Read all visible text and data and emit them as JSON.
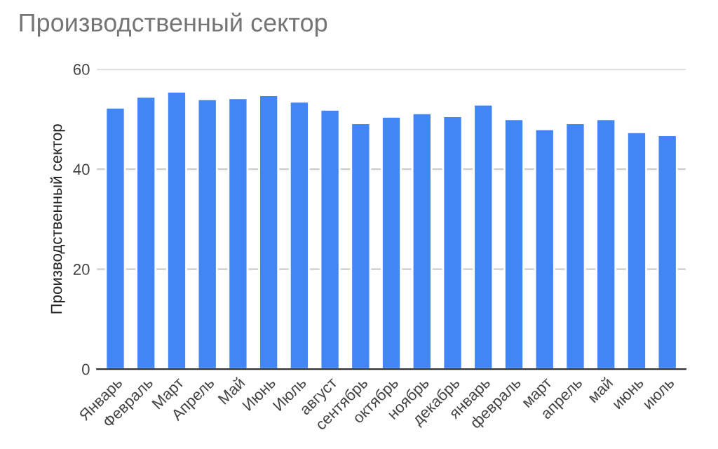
{
  "chart_data": {
    "type": "bar",
    "title": "Производственный сектор",
    "ylabel": "Производственный сектор",
    "categories": [
      "Январь",
      "Февраль",
      "Март",
      "Апрель",
      "Май",
      "Июнь",
      "Июль",
      "август",
      "сентябрь",
      "октябрь",
      "ноябрь",
      "декабрь",
      "январь",
      "февраль",
      "март",
      "апрель",
      "май",
      "июнь",
      "июль"
    ],
    "values": [
      52.3,
      54.5,
      55.5,
      54.0,
      54.2,
      54.8,
      53.5,
      51.9,
      49.2,
      50.5,
      51.2,
      50.6,
      52.9,
      50.0,
      48.0,
      49.2,
      50.0,
      47.4,
      46.8
    ],
    "color": "#4285f4",
    "ylim": [
      0,
      60
    ],
    "yticks": [
      0,
      20,
      40,
      60
    ],
    "grid": "y",
    "legend": false
  }
}
